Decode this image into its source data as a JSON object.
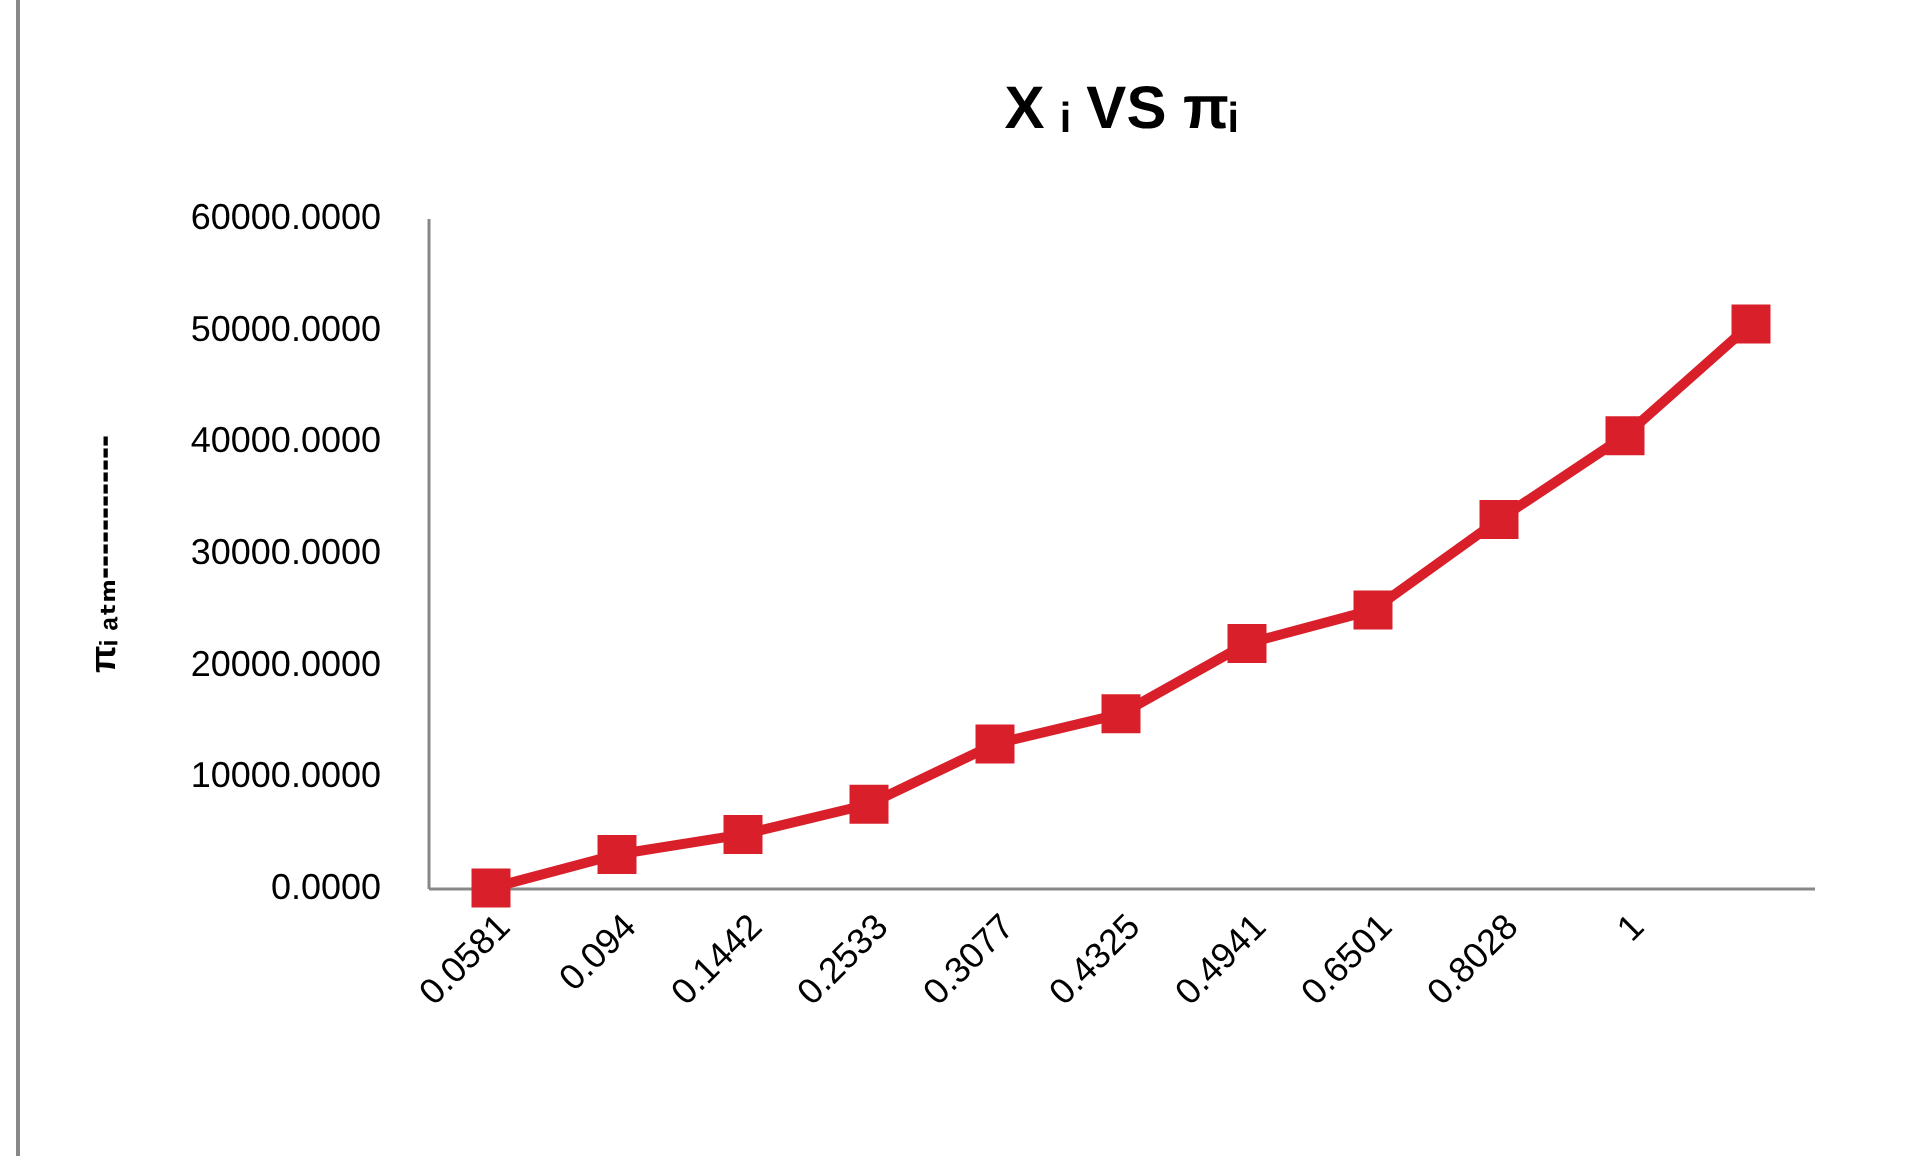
{
  "chart_data": {
    "type": "line",
    "title": "X ᵢ VS πᵢ",
    "ylabel": "πᵢ ₐₜₘ------------",
    "categories": [
      "0.0581",
      "0.094",
      "0.1442",
      "0.2533",
      "0.3077",
      "0.4325",
      "0.4941",
      "0.6501",
      "0.8028",
      "1",
      null
    ],
    "series": [
      {
        "color": "#d9202a",
        "values": [
          0,
          3000,
          4800,
          7500,
          12900,
          15600,
          21900,
          24900,
          33000,
          40500,
          50500
        ]
      }
    ],
    "ylim": [
      0,
      60000
    ],
    "yticks": [
      {
        "value": 0,
        "label": "0.0000"
      },
      {
        "value": 10000,
        "label": "10000.0000"
      },
      {
        "value": 20000,
        "label": "20000.0000"
      },
      {
        "value": 30000,
        "label": "30000.0000"
      },
      {
        "value": 40000,
        "label": "40000.0000"
      },
      {
        "value": 50000,
        "label": "50000.0000"
      },
      {
        "value": 60000,
        "label": "60000.0000"
      }
    ],
    "grid": false,
    "marker": "square",
    "line_style": "solid"
  }
}
